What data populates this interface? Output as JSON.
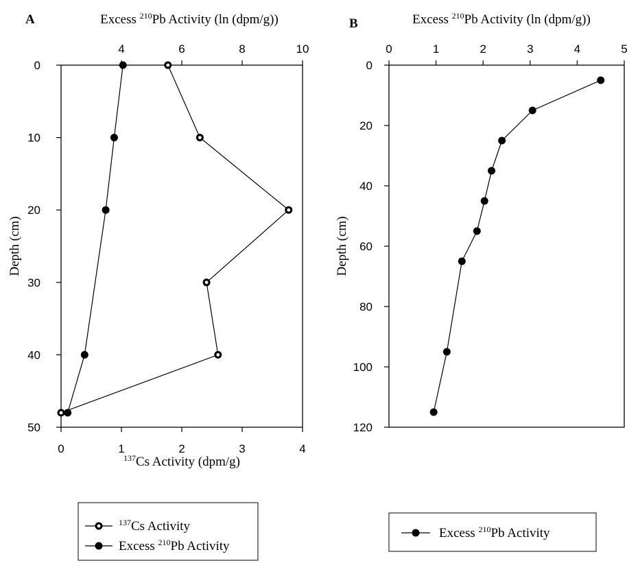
{
  "chart_data": [
    {
      "type": "scatter",
      "panel_label": "A",
      "ylabel": "Depth (cm)",
      "ylim": [
        0,
        50
      ],
      "y_ticks": [
        "0",
        "10",
        "20",
        "30",
        "40",
        "50"
      ],
      "y_reversed": true,
      "top_axis": {
        "label_prefix": "Excess ",
        "label_sup": "210",
        "label_suffix": "Pb Activity (ln (dpm/g))",
        "range": [
          2,
          10
        ],
        "ticks": [
          "4",
          "6",
          "8",
          "10"
        ]
      },
      "bottom_axis": {
        "label_sup": "137",
        "label_suffix": "Cs Activity (dpm/g)",
        "range": [
          0,
          4
        ],
        "ticks": [
          "0",
          "1",
          "2",
          "3",
          "4"
        ]
      },
      "series": [
        {
          "legend_sup": "137",
          "legend_text": "Cs Activity",
          "axis": "bottom",
          "marker": "open-circle",
          "x": [
            1.77,
            2.3,
            3.77,
            2.41,
            2.6,
            0.0
          ],
          "y": [
            0,
            10,
            20,
            30,
            40,
            48
          ]
        },
        {
          "legend_prefix": "Excess ",
          "legend_sup": "210",
          "legend_text": "Pb Activity",
          "axis": "top",
          "marker": "filled-circle",
          "x": [
            4.05,
            3.76,
            3.48,
            2.78,
            2.22
          ],
          "y": [
            0,
            10,
            20,
            40,
            48
          ]
        }
      ],
      "grid": false,
      "legend_position": "below"
    },
    {
      "type": "scatter",
      "panel_label": "B",
      "ylabel": "Depth (cm)",
      "ylim": [
        0,
        120
      ],
      "y_ticks": [
        "0",
        "20",
        "40",
        "60",
        "80",
        "100",
        "120"
      ],
      "y_reversed": true,
      "top_axis": {
        "label_prefix": "Excess ",
        "label_sup": "210",
        "label_suffix": "Pb Activity (ln (dpm/g))",
        "range": [
          0,
          5
        ],
        "ticks": [
          "0",
          "1",
          "2",
          "3",
          "4",
          "5"
        ]
      },
      "series": [
        {
          "legend_prefix": "Excess ",
          "legend_sup": "210",
          "legend_text": "Pb Activity",
          "axis": "top",
          "marker": "filled-circle",
          "x": [
            4.5,
            3.05,
            2.4,
            2.18,
            2.03,
            1.87,
            1.55,
            1.23,
            0.95
          ],
          "y": [
            5,
            15,
            25,
            35,
            45,
            55,
            65,
            95,
            115
          ]
        }
      ],
      "grid": false,
      "legend_position": "below"
    }
  ]
}
